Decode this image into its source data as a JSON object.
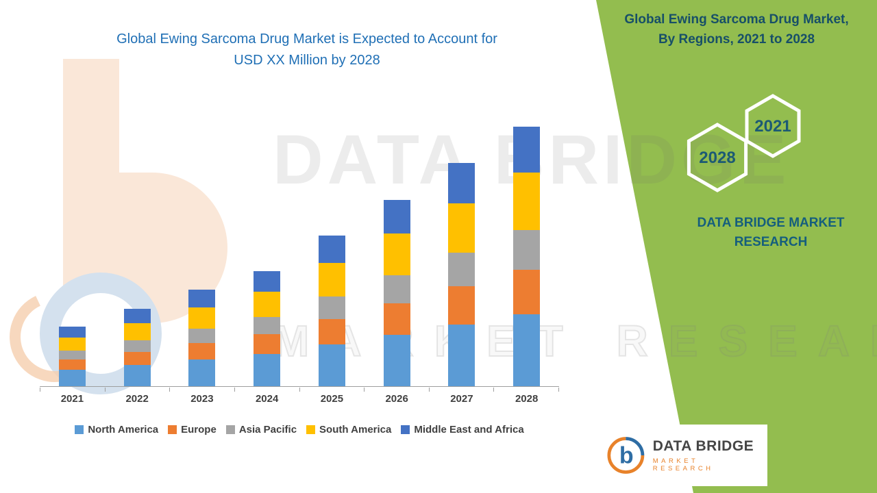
{
  "header": {
    "chart_title_lines": [
      "Global Ewing Sarcoma Drug Market is Expected to Account for",
      "USD XX Million by 2028"
    ]
  },
  "side_panel": {
    "bg_color": "#93BD4F",
    "text_color": "#174F68",
    "title_lines": [
      "Global Ewing Sarcoma Drug Market,",
      "By Regions, 2021 to 2028"
    ],
    "hexagon_years": [
      "2028",
      "2021"
    ],
    "brand_text": "DATA BRIDGE MARKET RESEARCH"
  },
  "watermark": {
    "line1": "DATA BRIDGE",
    "line2": "MARKET RESEARCH"
  },
  "footer_logo": {
    "brand": "DATA BRIDGE",
    "tagline": "MARKET RESEARCH"
  },
  "chart_data": {
    "type": "bar",
    "stacked": true,
    "title": "Global Ewing Sarcoma Drug Market is Expected to Account for USD XX Million by 2028",
    "xlabel": "",
    "ylabel": "",
    "value_note": "Y-axis unlabeled on chart (USD XX Million); values estimated from bar heights, arbitrary index units",
    "categories": [
      "2021",
      "2022",
      "2023",
      "2024",
      "2025",
      "2026",
      "2027",
      "2028"
    ],
    "series": [
      {
        "name": "North America",
        "color": "#5B9BD5",
        "values": [
          24,
          31,
          39,
          47,
          61,
          76,
          91,
          106
        ]
      },
      {
        "name": "Europe",
        "color": "#ED7D31",
        "values": [
          15,
          19,
          24,
          29,
          37,
          46,
          56,
          65
        ]
      },
      {
        "name": "Asia Pacific",
        "color": "#A5A5A5",
        "values": [
          13,
          17,
          21,
          25,
          33,
          41,
          49,
          58
        ]
      },
      {
        "name": "South America",
        "color": "#FFC000",
        "values": [
          19,
          25,
          31,
          37,
          49,
          61,
          73,
          85
        ]
      },
      {
        "name": "Middle East and Africa",
        "color": "#4472C4",
        "values": [
          16,
          21,
          26,
          30,
          40,
          49,
          59,
          68
        ]
      }
    ],
    "totals": [
      87,
      113,
      141,
      168,
      220,
      273,
      328,
      382
    ],
    "ylim": [
      0,
      400
    ],
    "grid": false,
    "y_axis_visible": false,
    "legend_position": "bottom"
  }
}
